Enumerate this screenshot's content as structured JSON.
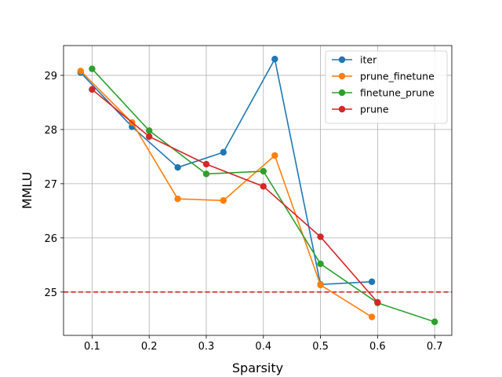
{
  "chart_data": {
    "type": "line",
    "xlabel": "Sparsity",
    "ylabel": "MMLU",
    "xlim": [
      0.05,
      0.73
    ],
    "ylim": [
      24.2,
      29.55
    ],
    "xticks": [
      0.1,
      0.2,
      0.3,
      0.4,
      0.5,
      0.6,
      0.7
    ],
    "xtick_labels": [
      "0.1",
      "0.2",
      "0.3",
      "0.4",
      "0.5",
      "0.6",
      "0.7"
    ],
    "yticks": [
      25,
      26,
      27,
      28,
      29
    ],
    "ytick_labels": [
      "25",
      "26",
      "27",
      "28",
      "29"
    ],
    "grid": true,
    "legend_position": "top-right",
    "reference_line": {
      "y": 25.0,
      "color": "#d62728",
      "style": "dashed"
    },
    "series": [
      {
        "name": "iter",
        "color": "#1f77b4",
        "x": [
          0.08,
          0.17,
          0.25,
          0.33,
          0.42,
          0.5,
          0.59
        ],
        "y": [
          29.05,
          28.05,
          27.3,
          27.58,
          29.3,
          25.14,
          25.19
        ]
      },
      {
        "name": "prune_finetune",
        "color": "#ff7f0e",
        "x": [
          0.08,
          0.17,
          0.25,
          0.33,
          0.42,
          0.5,
          0.59
        ],
        "y": [
          29.08,
          28.13,
          26.72,
          26.69,
          27.52,
          25.13,
          24.54
        ]
      },
      {
        "name": "finetune_prune",
        "color": "#2ca02c",
        "x": [
          0.1,
          0.2,
          0.3,
          0.4,
          0.5,
          0.6,
          0.7
        ],
        "y": [
          29.12,
          27.98,
          27.18,
          27.23,
          25.52,
          24.8,
          24.45
        ]
      },
      {
        "name": "prune",
        "color": "#d62728",
        "x": [
          0.1,
          0.2,
          0.3,
          0.4,
          0.5,
          0.6
        ],
        "y": [
          28.74,
          27.87,
          27.36,
          26.95,
          26.02,
          24.81
        ]
      }
    ]
  }
}
